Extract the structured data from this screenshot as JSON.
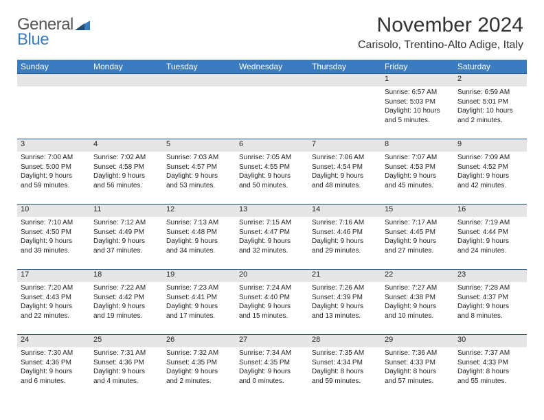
{
  "logo": {
    "text1": "General",
    "text2": "Blue"
  },
  "title": "November 2024",
  "location": "Carisolo, Trentino-Alto Adige, Italy",
  "day_headers": [
    "Sunday",
    "Monday",
    "Tuesday",
    "Wednesday",
    "Thursday",
    "Friday",
    "Saturday"
  ],
  "colors": {
    "header_bg": "#3b7bbf",
    "daynum_bg": "#e6e6e6",
    "border": "#1e4a73"
  },
  "weeks": [
    {
      "nums": [
        "",
        "",
        "",
        "",
        "",
        "1",
        "2"
      ],
      "cells": [
        null,
        null,
        null,
        null,
        null,
        {
          "sunrise": "Sunrise: 6:57 AM",
          "sunset": "Sunset: 5:03 PM",
          "d1": "Daylight: 10 hours",
          "d2": "and 5 minutes."
        },
        {
          "sunrise": "Sunrise: 6:59 AM",
          "sunset": "Sunset: 5:01 PM",
          "d1": "Daylight: 10 hours",
          "d2": "and 2 minutes."
        }
      ]
    },
    {
      "nums": [
        "3",
        "4",
        "5",
        "6",
        "7",
        "8",
        "9"
      ],
      "cells": [
        {
          "sunrise": "Sunrise: 7:00 AM",
          "sunset": "Sunset: 5:00 PM",
          "d1": "Daylight: 9 hours",
          "d2": "and 59 minutes."
        },
        {
          "sunrise": "Sunrise: 7:02 AM",
          "sunset": "Sunset: 4:58 PM",
          "d1": "Daylight: 9 hours",
          "d2": "and 56 minutes."
        },
        {
          "sunrise": "Sunrise: 7:03 AM",
          "sunset": "Sunset: 4:57 PM",
          "d1": "Daylight: 9 hours",
          "d2": "and 53 minutes."
        },
        {
          "sunrise": "Sunrise: 7:05 AM",
          "sunset": "Sunset: 4:55 PM",
          "d1": "Daylight: 9 hours",
          "d2": "and 50 minutes."
        },
        {
          "sunrise": "Sunrise: 7:06 AM",
          "sunset": "Sunset: 4:54 PM",
          "d1": "Daylight: 9 hours",
          "d2": "and 48 minutes."
        },
        {
          "sunrise": "Sunrise: 7:07 AM",
          "sunset": "Sunset: 4:53 PM",
          "d1": "Daylight: 9 hours",
          "d2": "and 45 minutes."
        },
        {
          "sunrise": "Sunrise: 7:09 AM",
          "sunset": "Sunset: 4:52 PM",
          "d1": "Daylight: 9 hours",
          "d2": "and 42 minutes."
        }
      ]
    },
    {
      "nums": [
        "10",
        "11",
        "12",
        "13",
        "14",
        "15",
        "16"
      ],
      "cells": [
        {
          "sunrise": "Sunrise: 7:10 AM",
          "sunset": "Sunset: 4:50 PM",
          "d1": "Daylight: 9 hours",
          "d2": "and 39 minutes."
        },
        {
          "sunrise": "Sunrise: 7:12 AM",
          "sunset": "Sunset: 4:49 PM",
          "d1": "Daylight: 9 hours",
          "d2": "and 37 minutes."
        },
        {
          "sunrise": "Sunrise: 7:13 AM",
          "sunset": "Sunset: 4:48 PM",
          "d1": "Daylight: 9 hours",
          "d2": "and 34 minutes."
        },
        {
          "sunrise": "Sunrise: 7:15 AM",
          "sunset": "Sunset: 4:47 PM",
          "d1": "Daylight: 9 hours",
          "d2": "and 32 minutes."
        },
        {
          "sunrise": "Sunrise: 7:16 AM",
          "sunset": "Sunset: 4:46 PM",
          "d1": "Daylight: 9 hours",
          "d2": "and 29 minutes."
        },
        {
          "sunrise": "Sunrise: 7:17 AM",
          "sunset": "Sunset: 4:45 PM",
          "d1": "Daylight: 9 hours",
          "d2": "and 27 minutes."
        },
        {
          "sunrise": "Sunrise: 7:19 AM",
          "sunset": "Sunset: 4:44 PM",
          "d1": "Daylight: 9 hours",
          "d2": "and 24 minutes."
        }
      ]
    },
    {
      "nums": [
        "17",
        "18",
        "19",
        "20",
        "21",
        "22",
        "23"
      ],
      "cells": [
        {
          "sunrise": "Sunrise: 7:20 AM",
          "sunset": "Sunset: 4:43 PM",
          "d1": "Daylight: 9 hours",
          "d2": "and 22 minutes."
        },
        {
          "sunrise": "Sunrise: 7:22 AM",
          "sunset": "Sunset: 4:42 PM",
          "d1": "Daylight: 9 hours",
          "d2": "and 19 minutes."
        },
        {
          "sunrise": "Sunrise: 7:23 AM",
          "sunset": "Sunset: 4:41 PM",
          "d1": "Daylight: 9 hours",
          "d2": "and 17 minutes."
        },
        {
          "sunrise": "Sunrise: 7:24 AM",
          "sunset": "Sunset: 4:40 PM",
          "d1": "Daylight: 9 hours",
          "d2": "and 15 minutes."
        },
        {
          "sunrise": "Sunrise: 7:26 AM",
          "sunset": "Sunset: 4:39 PM",
          "d1": "Daylight: 9 hours",
          "d2": "and 13 minutes."
        },
        {
          "sunrise": "Sunrise: 7:27 AM",
          "sunset": "Sunset: 4:38 PM",
          "d1": "Daylight: 9 hours",
          "d2": "and 10 minutes."
        },
        {
          "sunrise": "Sunrise: 7:28 AM",
          "sunset": "Sunset: 4:37 PM",
          "d1": "Daylight: 9 hours",
          "d2": "and 8 minutes."
        }
      ]
    },
    {
      "nums": [
        "24",
        "25",
        "26",
        "27",
        "28",
        "29",
        "30"
      ],
      "cells": [
        {
          "sunrise": "Sunrise: 7:30 AM",
          "sunset": "Sunset: 4:36 PM",
          "d1": "Daylight: 9 hours",
          "d2": "and 6 minutes."
        },
        {
          "sunrise": "Sunrise: 7:31 AM",
          "sunset": "Sunset: 4:36 PM",
          "d1": "Daylight: 9 hours",
          "d2": "and 4 minutes."
        },
        {
          "sunrise": "Sunrise: 7:32 AM",
          "sunset": "Sunset: 4:35 PM",
          "d1": "Daylight: 9 hours",
          "d2": "and 2 minutes."
        },
        {
          "sunrise": "Sunrise: 7:34 AM",
          "sunset": "Sunset: 4:35 PM",
          "d1": "Daylight: 9 hours",
          "d2": "and 0 minutes."
        },
        {
          "sunrise": "Sunrise: 7:35 AM",
          "sunset": "Sunset: 4:34 PM",
          "d1": "Daylight: 8 hours",
          "d2": "and 59 minutes."
        },
        {
          "sunrise": "Sunrise: 7:36 AM",
          "sunset": "Sunset: 4:33 PM",
          "d1": "Daylight: 8 hours",
          "d2": "and 57 minutes."
        },
        {
          "sunrise": "Sunrise: 7:37 AM",
          "sunset": "Sunset: 4:33 PM",
          "d1": "Daylight: 8 hours",
          "d2": "and 55 minutes."
        }
      ]
    }
  ]
}
